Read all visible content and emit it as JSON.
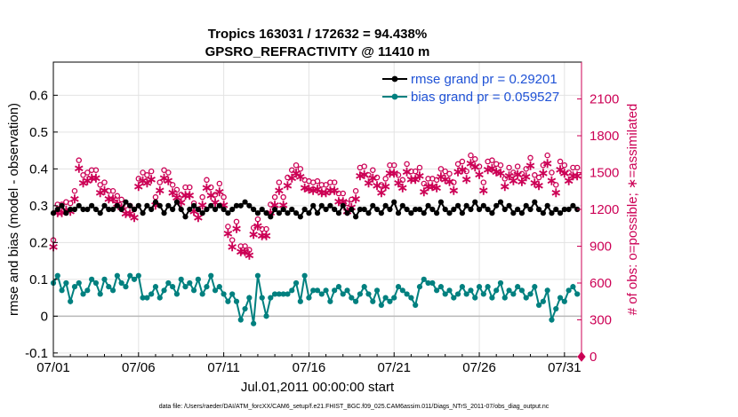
{
  "chart_data": {
    "type": "line",
    "title": "Tropics 163031 / 172632 = 94.438%",
    "subtitle": "GPSRO_REFRACTIVITY @ 11410 m",
    "xlabel": "Jul.01,2011 00:00:00 start",
    "ylabel": "rmse and bias (model - observation)",
    "y2label": "# of obs: o=possible; ∗=assimilated",
    "footer": "data file: /Users/raeder/DAI/ATM_forcXX/CAM6_setup/f.e21.FHIST_BGC.f09_025.CAM6assim.011/Diags_NTrS_2011-07/obs_diag_output.nc",
    "xlim": [
      0,
      31
    ],
    "ylim": [
      -0.11,
      0.69
    ],
    "y2lim": [
      0,
      2400
    ],
    "x_ticks": [
      0,
      5,
      10,
      15,
      20,
      25,
      30
    ],
    "x_tick_labels": [
      "07/01",
      "07/06",
      "07/11",
      "07/16",
      "07/21",
      "07/26",
      "07/31"
    ],
    "y_ticks": [
      -0.1,
      0,
      0.1,
      0.2,
      0.3,
      0.4,
      0.5,
      0.6
    ],
    "y_tick_labels": [
      "-0.1",
      "0",
      "0.1",
      "0.2",
      "0.3",
      "0.4",
      "0.5",
      "0.6"
    ],
    "y2_ticks": [
      0,
      300,
      600,
      900,
      1200,
      1500,
      1800,
      2100
    ],
    "y2_tick_labels": [
      "0",
      "300",
      "600",
      "900",
      "1200",
      "1500",
      "1800",
      "2100"
    ],
    "zero_line": 0,
    "grid": true,
    "legend_position": "top-right",
    "x": [
      0,
      0.25,
      0.5,
      0.75,
      1,
      1.25,
      1.5,
      1.75,
      2,
      2.25,
      2.5,
      2.75,
      3,
      3.25,
      3.5,
      3.75,
      4,
      4.25,
      4.5,
      4.75,
      5,
      5.25,
      5.5,
      5.75,
      6,
      6.25,
      6.5,
      6.75,
      7,
      7.25,
      7.5,
      7.75,
      8,
      8.25,
      8.5,
      8.75,
      9,
      9.25,
      9.5,
      9.75,
      10,
      10.25,
      10.5,
      10.75,
      11,
      11.25,
      11.5,
      11.75,
      12,
      12.25,
      12.5,
      12.75,
      13,
      13.25,
      13.5,
      13.75,
      14,
      14.25,
      14.5,
      14.75,
      15,
      15.25,
      15.5,
      15.75,
      16,
      16.25,
      16.5,
      16.75,
      17,
      17.25,
      17.5,
      17.75,
      18,
      18.25,
      18.5,
      18.75,
      19,
      19.25,
      19.5,
      19.75,
      20,
      20.25,
      20.5,
      20.75,
      21,
      21.25,
      21.5,
      21.75,
      22,
      22.25,
      22.5,
      22.75,
      23,
      23.25,
      23.5,
      23.75,
      24,
      24.25,
      24.5,
      24.75,
      25,
      25.25,
      25.5,
      25.75,
      26,
      26.25,
      26.5,
      26.75,
      27,
      27.25,
      27.5,
      27.75,
      28,
      28.25,
      28.5,
      28.75,
      29,
      29.25,
      29.5,
      29.75,
      30,
      30.25,
      30.5,
      30.75
    ],
    "series": [
      {
        "name": "rmse grand pr = 0.29201",
        "color": "#000000",
        "axis": "left",
        "marker": "filled-circle",
        "values": [
          0.28,
          0.29,
          0.3,
          0.28,
          0.29,
          0.29,
          0.3,
          0.29,
          0.29,
          0.3,
          0.29,
          0.28,
          0.3,
          0.29,
          0.29,
          0.3,
          0.29,
          0.31,
          0.3,
          0.29,
          0.3,
          0.28,
          0.3,
          0.29,
          0.31,
          0.3,
          0.28,
          0.3,
          0.29,
          0.31,
          0.29,
          0.27,
          0.29,
          0.3,
          0.29,
          0.28,
          0.29,
          0.3,
          0.29,
          0.3,
          0.29,
          0.28,
          0.29,
          0.3,
          0.3,
          0.31,
          0.3,
          0.29,
          0.28,
          0.29,
          0.28,
          0.27,
          0.29,
          0.28,
          0.29,
          0.28,
          0.29,
          0.28,
          0.27,
          0.29,
          0.28,
          0.3,
          0.28,
          0.3,
          0.29,
          0.3,
          0.29,
          0.28,
          0.3,
          0.28,
          0.29,
          0.27,
          0.29,
          0.29,
          0.28,
          0.3,
          0.29,
          0.28,
          0.3,
          0.29,
          0.31,
          0.28,
          0.3,
          0.29,
          0.28,
          0.29,
          0.29,
          0.28,
          0.3,
          0.29,
          0.28,
          0.31,
          0.29,
          0.28,
          0.29,
          0.3,
          0.28,
          0.3,
          0.29,
          0.31,
          0.29,
          0.3,
          0.29,
          0.28,
          0.3,
          0.31,
          0.29,
          0.3,
          0.28,
          0.29,
          0.28,
          0.3,
          0.29,
          0.31,
          0.29,
          0.28,
          0.3,
          0.28,
          0.29,
          0.28,
          0.29,
          0.29,
          0.3,
          0.29
        ]
      },
      {
        "name": "bias grand pr = 0.059527",
        "color": "#00807f",
        "axis": "left",
        "marker": "filled-circle",
        "values": [
          0.09,
          0.11,
          0.07,
          0.09,
          0.04,
          0.08,
          0.09,
          0.06,
          0.07,
          0.1,
          0.09,
          0.06,
          0.1,
          0.08,
          0.07,
          0.11,
          0.09,
          0.08,
          0.11,
          0.1,
          0.11,
          0.05,
          0.05,
          0.06,
          0.08,
          0.05,
          0.07,
          0.09,
          0.08,
          0.06,
          0.1,
          0.08,
          0.09,
          0.07,
          0.1,
          0.06,
          0.08,
          0.11,
          0.07,
          0.08,
          0.06,
          0.04,
          0.06,
          0.04,
          -0.01,
          0.02,
          0.05,
          -0.02,
          0.11,
          0.05,
          0.0,
          0.05,
          0.06,
          0.06,
          0.06,
          0.06,
          0.07,
          0.09,
          0.04,
          0.11,
          0.05,
          0.07,
          0.07,
          0.06,
          0.07,
          0.04,
          0.07,
          0.08,
          0.06,
          0.07,
          0.05,
          0.04,
          0.06,
          0.08,
          0.06,
          0.04,
          0.07,
          0.03,
          0.05,
          0.04,
          0.05,
          0.08,
          0.07,
          0.06,
          0.05,
          0.03,
          0.08,
          0.1,
          0.09,
          0.09,
          0.07,
          0.08,
          0.06,
          0.07,
          0.05,
          0.06,
          0.08,
          0.06,
          0.07,
          0.05,
          0.08,
          0.06,
          0.08,
          0.05,
          0.07,
          0.09,
          0.05,
          0.07,
          0.06,
          0.08,
          0.07,
          0.05,
          0.06,
          0.08,
          0.03,
          0.04,
          0.07,
          -0.01,
          0.02,
          0.05,
          0.04,
          0.07,
          0.08,
          0.06
        ]
      },
      {
        "name": "# obs possible",
        "color": "#cc0055",
        "axis": "right",
        "marker": "open-circle",
        "values": [
          950,
          1240,
          1240,
          1260,
          1250,
          1350,
          1600,
          1480,
          1500,
          1520,
          1520,
          1400,
          1420,
          1350,
          1350,
          1310,
          1280,
          1230,
          1230,
          1200,
          1450,
          1500,
          1480,
          1510,
          1300,
          1420,
          1520,
          1500,
          1400,
          1360,
          1320,
          1380,
          1380,
          1250,
          1200,
          1300,
          1440,
          1380,
          1320,
          1410,
          1300,
          1060,
          950,
          1100,
          900,
          900,
          870,
          1050,
          1120,
          1040,
          1040,
          1240,
          1300,
          1420,
          1300,
          1460,
          1520,
          1560,
          1530,
          1440,
          1430,
          1420,
          1430,
          1400,
          1400,
          1420,
          1420,
          1330,
          1330,
          1250,
          1280,
          1350,
          1540,
          1550,
          1480,
          1520,
          1460,
          1400,
          1450,
          1560,
          1560,
          1480,
          1440,
          1570,
          1510,
          1510,
          1540,
          1410,
          1450,
          1450,
          1440,
          1530,
          1510,
          1490,
          1420,
          1570,
          1590,
          1510,
          1640,
          1610,
          1550,
          1420,
          1590,
          1600,
          1570,
          1560,
          1450,
          1540,
          1500,
          1550,
          1490,
          1530,
          1620,
          1480,
          1460,
          1560,
          1640,
          1500,
          1400,
          1590,
          1560,
          1500,
          1540,
          1540
        ]
      },
      {
        "name": "# obs assimilated",
        "color": "#cc0055",
        "axis": "right",
        "marker": "asterisk",
        "values": [
          900,
          1180,
          1180,
          1200,
          1190,
          1290,
          1540,
          1420,
          1440,
          1460,
          1460,
          1340,
          1360,
          1290,
          1290,
          1250,
          1220,
          1170,
          1170,
          1140,
          1390,
          1440,
          1420,
          1450,
          1240,
          1360,
          1460,
          1440,
          1340,
          1300,
          1260,
          1320,
          1320,
          1190,
          1140,
          1240,
          1380,
          1320,
          1260,
          1350,
          1240,
          1010,
          900,
          1050,
          860,
          860,
          830,
          1000,
          1070,
          990,
          990,
          1180,
          1240,
          1360,
          1240,
          1400,
          1460,
          1500,
          1470,
          1380,
          1370,
          1360,
          1370,
          1340,
          1340,
          1360,
          1360,
          1270,
          1270,
          1190,
          1220,
          1290,
          1480,
          1490,
          1420,
          1460,
          1400,
          1340,
          1390,
          1500,
          1500,
          1420,
          1380,
          1510,
          1450,
          1450,
          1480,
          1350,
          1390,
          1390,
          1380,
          1470,
          1450,
          1430,
          1360,
          1510,
          1530,
          1450,
          1580,
          1550,
          1490,
          1360,
          1530,
          1540,
          1510,
          1500,
          1390,
          1480,
          1440,
          1490,
          1430,
          1470,
          1560,
          1420,
          1400,
          1500,
          1580,
          1440,
          1340,
          1530,
          1500,
          1440,
          1480,
          1480
        ]
      }
    ],
    "last_point_obs": 0
  }
}
